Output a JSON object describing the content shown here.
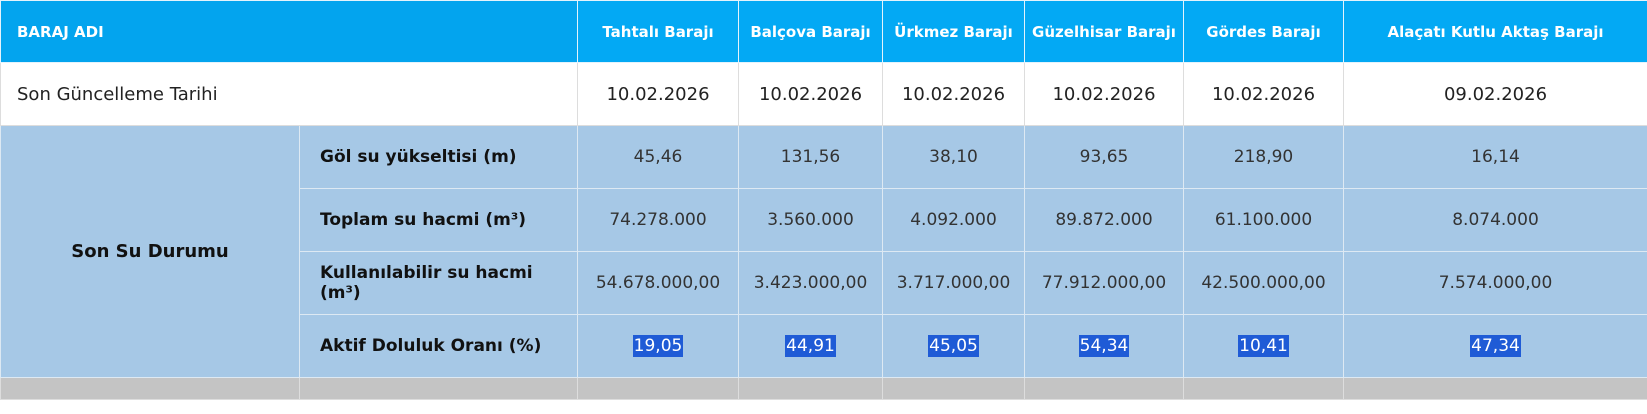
{
  "header": {
    "first_label": "BARAJ ADI",
    "dams": [
      "Tahtalı Barajı",
      "Balçova Barajı",
      "Ürkmez Barajı",
      "Güzelhisar Barajı",
      "Gördes Barajı",
      "Alaçatı Kutlu Aktaş Barajı"
    ]
  },
  "update_row": {
    "label": "Son Güncelleme Tarihi",
    "values": [
      "10.02.2026",
      "10.02.2026",
      "10.02.2026",
      "10.02.2026",
      "10.02.2026",
      "09.02.2026"
    ]
  },
  "water_status": {
    "group_label": "Son Su Durumu",
    "rows": [
      {
        "label": "Göl su yükseltisi (m)",
        "values": [
          "45,46",
          "131,56",
          "38,10",
          "93,65",
          "218,90",
          "16,14"
        ]
      },
      {
        "label": "Toplam su hacmi (m³)",
        "values": [
          "74.278.000",
          "3.560.000",
          "4.092.000",
          "89.872.000",
          "61.100.000",
          "8.074.000"
        ]
      },
      {
        "label": "Kullanılabilir su hacmi (m³)",
        "values": [
          "54.678.000,00",
          "3.423.000,00",
          "3.717.000,00",
          "77.912.000,00",
          "42.500.000,00",
          "7.574.000,00"
        ]
      },
      {
        "label": "Aktif Doluluk Oranı (%)",
        "values": [
          "19,05",
          "44,91",
          "45,05",
          "54,34",
          "10,41",
          "47,34"
        ]
      }
    ]
  },
  "colors": {
    "header_bg": "#03a9f4",
    "data_bg": "#a6c8e6",
    "selection_bg": "#1f5bd6"
  }
}
